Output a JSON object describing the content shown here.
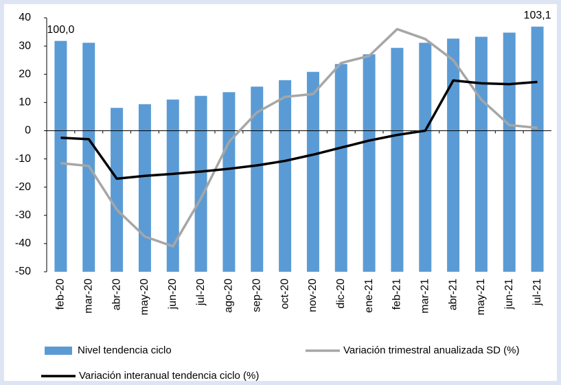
{
  "chart_data": {
    "type": "bar-line",
    "categories": [
      "feb-20",
      "mar-20",
      "abr-20",
      "may-20",
      "jun-20",
      "jul-20",
      "ago-20",
      "sep-20",
      "oct-20",
      "nov-20",
      "dic-20",
      "ene-21",
      "feb-21",
      "mar-21",
      "abr-21",
      "may-21",
      "jun-21",
      "jul-21"
    ],
    "series": [
      {
        "name": "Nivel tendencia ciclo",
        "type": "bar",
        "axis": "y2",
        "color": "#5b9bd5",
        "values": [
          100.0,
          99.6,
          85.5,
          86.3,
          87.3,
          88.1,
          88.9,
          90.1,
          91.5,
          93.3,
          95.0,
          97.1,
          98.5,
          99.6,
          100.5,
          100.9,
          101.8,
          103.1
        ],
        "value_labels": [
          "100,0",
          null,
          null,
          null,
          null,
          null,
          null,
          null,
          null,
          null,
          null,
          null,
          null,
          null,
          null,
          null,
          null,
          "103,1"
        ]
      },
      {
        "name": "Variación trimestral anualizada SD (%)",
        "type": "line",
        "color": "#a6a6a6",
        "values": [
          -11.5,
          -12.5,
          -28,
          -37.5,
          -41,
          -24,
          -4,
          6.5,
          12,
          13,
          24,
          26.5,
          36,
          32.5,
          25,
          11,
          2,
          1
        ]
      },
      {
        "name": "Variación interanual tendencia ciclo (%)",
        "type": "line",
        "color": "#000000",
        "values": [
          -2.5,
          -3,
          -17,
          -16,
          -15.3,
          -14.5,
          -13.5,
          -12.3,
          -10.7,
          -8.5,
          -6,
          -3.5,
          -1.5,
          0,
          17.8,
          16.8,
          16.5,
          17.3
        ]
      }
    ],
    "ylim": [
      -50,
      40
    ],
    "yticks": [
      -50,
      -40,
      -30,
      -20,
      -10,
      0,
      10,
      20,
      30,
      40
    ],
    "y2lim": [
      50,
      105
    ],
    "negative_tick_color": "#ff0000"
  }
}
